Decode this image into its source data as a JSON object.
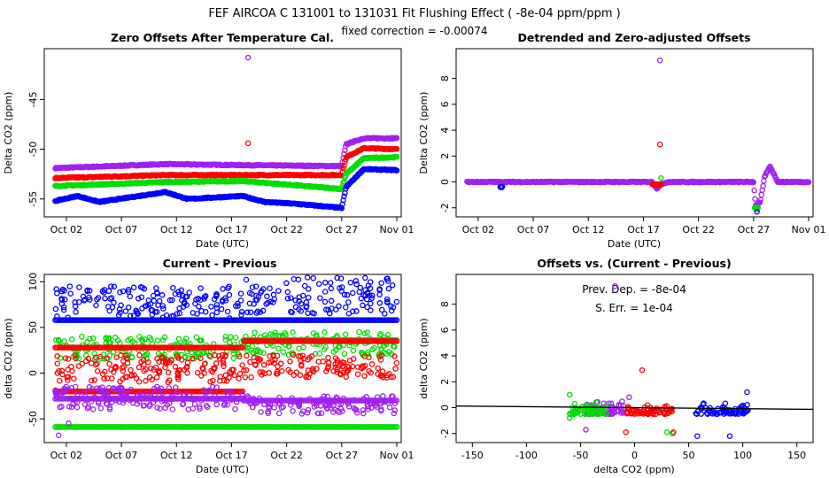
{
  "figure": {
    "title": "FEF   AIRCOA C   131001 to 131031   Fit Flushing Effect ( -8e-04 ppm/ppm )",
    "subtitle": "fixed correction = -0.00074"
  },
  "colors": {
    "blue": "#0000ff",
    "red": "#ff0000",
    "green": "#00dd00",
    "purple": "#a020f0",
    "axis": "#000000"
  },
  "chart_data": [
    {
      "id": "p1",
      "type": "scatter",
      "title": "Zero Offsets After Temperature Cal.",
      "xlabel": "Date (UTC)",
      "ylabel": "Delta CO2 (ppm)",
      "xlim": [
        -1,
        31.4
      ],
      "ylim": [
        -56.8,
        -39.9
      ],
      "xticks": [
        1,
        6,
        11,
        16,
        21,
        26,
        31
      ],
      "xticklabels": [
        "Oct 02",
        "Oct 07",
        "Oct 12",
        "Oct 17",
        "Oct 22",
        "Oct 27",
        "Nov 01"
      ],
      "yticks": [
        -55,
        -50,
        -45
      ],
      "yticklabels": [
        "-55",
        "-50",
        "-45"
      ],
      "series": [
        {
          "name": "purple",
          "color": "purple",
          "segments": [
            [
              0,
              -51.9
            ],
            [
              10,
              -51.5
            ],
            [
              17,
              -51.6
            ],
            [
              26,
              -51.7
            ],
            [
              26.4,
              -49.5
            ],
            [
              28,
              -48.9
            ],
            [
              31,
              -48.9
            ]
          ],
          "outliers": [
            [
              17.5,
              -40.8
            ]
          ]
        },
        {
          "name": "red",
          "color": "red",
          "segments": [
            [
              0,
              -52.9
            ],
            [
              10,
              -52.6
            ],
            [
              17,
              -52.6
            ],
            [
              26,
              -52.6
            ],
            [
              26.4,
              -50.8
            ],
            [
              28,
              -49.9
            ],
            [
              31,
              -50.0
            ]
          ],
          "outliers": [
            [
              17.5,
              -49.4
            ]
          ]
        },
        {
          "name": "green",
          "color": "green",
          "segments": [
            [
              0,
              -53.7
            ],
            [
              10,
              -53.3
            ],
            [
              17,
              -53.2
            ],
            [
              26,
              -54.0
            ],
            [
              26.4,
              -52.5
            ],
            [
              28,
              -50.9
            ],
            [
              31,
              -50.8
            ]
          ],
          "outliers": []
        },
        {
          "name": "blue",
          "color": "blue",
          "segments": [
            [
              0,
              -55.2
            ],
            [
              2,
              -54.7
            ],
            [
              4,
              -55.3
            ],
            [
              10,
              -54.3
            ],
            [
              12,
              -55.0
            ],
            [
              17,
              -54.7
            ],
            [
              19,
              -55.3
            ],
            [
              22,
              -55.5
            ],
            [
              26,
              -55.9
            ],
            [
              26.4,
              -53.8
            ],
            [
              28,
              -52.0
            ],
            [
              31,
              -52.1
            ]
          ],
          "outliers": []
        }
      ]
    },
    {
      "id": "p2",
      "type": "scatter",
      "title": "Detrended and Zero-adjusted Offsets",
      "xlabel": "Date (UTC)",
      "ylabel": "Delta CO2 (ppm)",
      "xlim": [
        -1,
        31.4
      ],
      "ylim": [
        -2.7,
        10.3
      ],
      "xticks": [
        1,
        6,
        11,
        16,
        21,
        26,
        31
      ],
      "xticklabels": [
        "Oct 02",
        "Oct 07",
        "Oct 12",
        "Oct 17",
        "Oct 22",
        "Oct 27",
        "Nov 01"
      ],
      "yticks": [
        -2,
        0,
        2,
        4,
        6,
        8
      ],
      "yticklabels": [
        "-2",
        "0",
        "2",
        "4",
        "6",
        "8"
      ],
      "series": [
        {
          "name": "purple",
          "color": "purple",
          "segments": [
            [
              0,
              0
            ],
            [
              16.8,
              0
            ],
            [
              17.2,
              -0.5
            ],
            [
              17.6,
              -0.2
            ],
            [
              18.2,
              0
            ],
            [
              26,
              0
            ],
            [
              26.2,
              -1.8
            ],
            [
              26.6,
              -1.6
            ],
            [
              27.0,
              0.4
            ],
            [
              27.5,
              1.2
            ],
            [
              28.2,
              0
            ],
            [
              31,
              0
            ]
          ],
          "outliers": [
            [
              17.5,
              9.4
            ]
          ]
        },
        {
          "name": "red",
          "color": "red",
          "segments": [
            [
              16.8,
              -0.2
            ],
            [
              17.6,
              -0.2
            ]
          ],
          "outliers": [
            [
              17.5,
              2.9
            ],
            [
              26.3,
              -2.1
            ]
          ]
        },
        {
          "name": "green",
          "color": "green",
          "segments": [
            [
              26.1,
              -2.0
            ],
            [
              26.4,
              -2.0
            ]
          ],
          "outliers": [
            [
              17.6,
              0.3
            ]
          ]
        },
        {
          "name": "blue",
          "color": "blue",
          "segments": [
            [
              3,
              -0.4
            ],
            [
              3.2,
              -0.4
            ]
          ],
          "outliers": [
            [
              26.3,
              -2.3
            ]
          ]
        }
      ]
    },
    {
      "id": "p3",
      "type": "scatter",
      "title": "Current - Previous",
      "xlabel": "Date (UTC)",
      "ylabel": "delta CO2 (ppm)",
      "xlim": [
        -1,
        31.4
      ],
      "ylim": [
        -76,
        108
      ],
      "xticks": [
        1,
        6,
        11,
        16,
        21,
        26,
        31
      ],
      "xticklabels": [
        "Oct 02",
        "Oct 07",
        "Oct 12",
        "Oct 17",
        "Oct 22",
        "Oct 27",
        "Nov 01"
      ],
      "yticks": [
        -50,
        0,
        50,
        100
      ],
      "yticklabels": [
        "-50",
        "0",
        "50",
        "100"
      ],
      "series": [
        {
          "name": "blue",
          "color": "blue",
          "bands": [
            [
              0,
              17,
              60,
              95
            ],
            [
              17.1,
              31,
              65,
              105
            ]
          ],
          "lines": [
            [
              0,
              31,
              58
            ]
          ]
        },
        {
          "name": "green",
          "color": "green",
          "bands": [
            [
              0,
              17,
              15,
              40
            ],
            [
              17.1,
              31,
              20,
              45
            ]
          ],
          "lines": [
            [
              0,
              31,
              -59
            ],
            [
              17.1,
              31,
              36
            ]
          ]
        },
        {
          "name": "red",
          "color": "red",
          "bands": [
            [
              0,
              17,
              -10,
              20
            ],
            [
              17.1,
              31,
              -5,
              20
            ]
          ],
          "lines": [
            [
              0,
              17,
              28
            ],
            [
              17.1,
              31,
              35
            ],
            [
              0,
              17,
              -20
            ]
          ]
        },
        {
          "name": "purple",
          "color": "purple",
          "bands": [
            [
              0,
              17,
              -40,
              -15
            ],
            [
              17.1,
              31,
              -45,
              -25
            ]
          ],
          "lines": [
            [
              0,
              17,
              -28
            ],
            [
              17.1,
              31,
              -30
            ]
          ],
          "outliers": [
            [
              0.3,
              -68
            ],
            [
              1.2,
              -55
            ]
          ]
        }
      ]
    },
    {
      "id": "p4",
      "type": "scatter",
      "title": "Offsets vs. (Current - Previous)",
      "xlabel": "delta CO2 (ppm)",
      "ylabel": "delta CO2 (ppm)",
      "xlim": [
        -165,
        165
      ],
      "ylim": [
        -2.7,
        10.3
      ],
      "xticks": [
        -150,
        -100,
        -50,
        0,
        50,
        100,
        150
      ],
      "xticklabels": [
        "-150",
        "-100",
        "-50",
        "0",
        "50",
        "100",
        "150"
      ],
      "yticks": [
        -2,
        0,
        2,
        4,
        6,
        8
      ],
      "yticklabels": [
        "-2",
        "0",
        "2",
        "4",
        "6",
        "8"
      ],
      "annotation_dep": "Prev. Dep. =  -8e-04",
      "annotation_err": "S. Err. =  1e-04",
      "fit_line": {
        "x": [
          -165,
          165
        ],
        "y": [
          0.13,
          -0.13
        ]
      },
      "series": [
        {
          "name": "purple",
          "color": "purple",
          "x_range": [
            -45,
            -10
          ],
          "y_range": [
            -0.5,
            0.6
          ],
          "outliers": [
            [
              -18,
              9.4
            ],
            [
              -45,
              -1.7
            ],
            [
              -5,
              0.8
            ]
          ]
        },
        {
          "name": "green",
          "color": "green",
          "x_range": [
            -60,
            -25
          ],
          "y_range": [
            -0.5,
            0.5
          ],
          "extra": [
            [
              30,
              -1.9
            ],
            [
              35,
              -2.0
            ],
            [
              -60,
              1.0
            ],
            [
              -60,
              -0.8
            ]
          ]
        },
        {
          "name": "red",
          "color": "red",
          "x_range": [
            -8,
            35
          ],
          "y_range": [
            -0.5,
            0.4
          ],
          "outliers": [
            [
              7,
              2.9
            ],
            [
              -8,
              -1.9
            ],
            [
              36,
              -1.9
            ]
          ]
        },
        {
          "name": "blue",
          "color": "blue",
          "x_range": [
            55,
            105
          ],
          "y_range": [
            -0.5,
            0.5
          ],
          "outliers": [
            [
              88,
              -2.2
            ],
            [
              104,
              1.2
            ],
            [
              58,
              -2.2
            ]
          ]
        }
      ]
    }
  ]
}
